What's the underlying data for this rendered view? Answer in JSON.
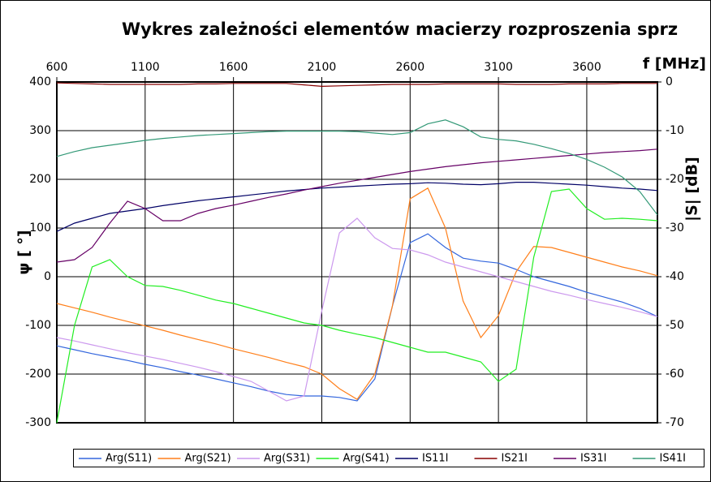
{
  "chart_data": {
    "type": "line",
    "title": "Wykres zależności elementów macierzy rozproszenia sprz",
    "x_label": "f [MHz]",
    "y_label": "ψ [ °]",
    "y2_label": "|S| [dB]",
    "x": [
      600,
      700,
      800,
      900,
      1000,
      1100,
      1200,
      1300,
      1400,
      1500,
      1600,
      1700,
      1800,
      1900,
      2000,
      2100,
      2200,
      2300,
      2400,
      2500,
      2600,
      2700,
      2800,
      2900,
      3000,
      3100,
      3200,
      3300,
      3400,
      3500,
      3600,
      3700,
      3800,
      3900,
      4000
    ],
    "xlim": [
      600,
      4000
    ],
    "xticks": [
      600,
      1100,
      1600,
      2100,
      2600,
      3100,
      3600
    ],
    "ylim": [
      -300,
      400
    ],
    "yticks": [
      -300,
      -200,
      -100,
      0,
      100,
      200,
      300,
      400
    ],
    "y2lim": [
      -70,
      0
    ],
    "y2ticks": [
      -70,
      -60,
      -50,
      -40,
      -30,
      -20,
      -10,
      0
    ],
    "grid": true,
    "series": [
      {
        "name": "Arg(S11)",
        "color": "#3366dd",
        "values": [
          -142,
          -150,
          -158,
          -165,
          -172,
          -180,
          -187,
          -195,
          -202,
          -210,
          -218,
          -226,
          -235,
          -242,
          -245,
          -245,
          -248,
          -255,
          -210,
          -60,
          70,
          88,
          60,
          38,
          32,
          28,
          15,
          0,
          -10,
          -20,
          -32,
          -42,
          -52,
          -65,
          -82
        ]
      },
      {
        "name": "Arg(S21)",
        "color": "#ff7f1a",
        "values": [
          -55,
          -64,
          -73,
          -83,
          -92,
          -101,
          -110,
          -120,
          -129,
          -138,
          -148,
          -157,
          -166,
          -176,
          -185,
          -200,
          -230,
          -252,
          -200,
          -60,
          160,
          182,
          100,
          -50,
          -125,
          -80,
          10,
          62,
          60,
          50,
          40,
          30,
          20,
          12,
          2
        ]
      },
      {
        "name": "Arg(S31)",
        "color": "#cc99ee",
        "values": [
          -125,
          -132,
          -140,
          -148,
          -156,
          -163,
          -170,
          -178,
          -186,
          -195,
          -205,
          -215,
          -235,
          -255,
          -245,
          -70,
          90,
          120,
          80,
          58,
          55,
          45,
          30,
          20,
          10,
          0,
          -10,
          -20,
          -30,
          -38,
          -47,
          -55,
          -63,
          -72,
          -82
        ]
      },
      {
        "name": "Arg(S41)",
        "color": "#22ee22",
        "values": [
          -300,
          -100,
          20,
          35,
          0,
          -18,
          -20,
          -28,
          -38,
          -48,
          -55,
          -65,
          -75,
          -85,
          -95,
          -100,
          -110,
          -118,
          -125,
          -135,
          -145,
          -155,
          -155,
          -165,
          -175,
          -215,
          -190,
          40,
          175,
          180,
          140,
          118,
          120,
          118,
          115
        ]
      },
      {
        "name": "IS11I",
        "color": "#000066",
        "axis": "y2",
        "values": [
          -30.7,
          -29,
          -28,
          -27,
          -26.5,
          -26,
          -25.4,
          -24.9,
          -24.4,
          -24,
          -23.6,
          -23.2,
          -22.8,
          -22.4,
          -22.1,
          -21.8,
          -21.6,
          -21.4,
          -21.2,
          -21,
          -20.9,
          -20.7,
          -20.8,
          -21,
          -21.1,
          -20.9,
          -20.6,
          -20.6,
          -20.8,
          -21,
          -21.2,
          -21.5,
          -21.8,
          -22,
          -22.3
        ]
      },
      {
        "name": "IS21I",
        "color": "#880000",
        "axis": "y2",
        "values": [
          -0.2,
          -0.3,
          -0.4,
          -0.5,
          -0.5,
          -0.5,
          -0.5,
          -0.5,
          -0.4,
          -0.4,
          -0.3,
          -0.3,
          -0.3,
          -0.3,
          -0.6,
          -0.9,
          -0.8,
          -0.7,
          -0.6,
          -0.5,
          -0.5,
          -0.5,
          -0.4,
          -0.4,
          -0.4,
          -0.4,
          -0.5,
          -0.5,
          -0.5,
          -0.4,
          -0.4,
          -0.4,
          -0.3,
          -0.3,
          -0.3
        ]
      },
      {
        "name": "IS31I",
        "color": "#660066",
        "axis": "y2",
        "values": [
          -37,
          -36.5,
          -34,
          -29,
          -24.5,
          -26,
          -28.5,
          -28.5,
          -27,
          -26,
          -25.3,
          -24.5,
          -23.7,
          -23,
          -22.2,
          -21.5,
          -20.8,
          -20.2,
          -19.6,
          -19,
          -18.4,
          -17.9,
          -17.4,
          -17,
          -16.6,
          -16.3,
          -16,
          -15.7,
          -15.4,
          -15.1,
          -14.8,
          -14.5,
          -14.3,
          -14.1,
          -13.8
        ]
      },
      {
        "name": "IS41I",
        "color": "#339977",
        "axis": "y2",
        "values": [
          -15.3,
          -14.3,
          -13.5,
          -13,
          -12.5,
          -12,
          -11.6,
          -11.3,
          -11,
          -10.8,
          -10.6,
          -10.4,
          -10.2,
          -10.1,
          -10.1,
          -10.1,
          -10.1,
          -10.2,
          -10.5,
          -10.8,
          -10.4,
          -8.6,
          -7.8,
          -9.2,
          -11.3,
          -11.8,
          -12.1,
          -12.8,
          -13.7,
          -14.7,
          -15.9,
          -17.5,
          -19.5,
          -22.5,
          -27.3
        ]
      }
    ]
  }
}
